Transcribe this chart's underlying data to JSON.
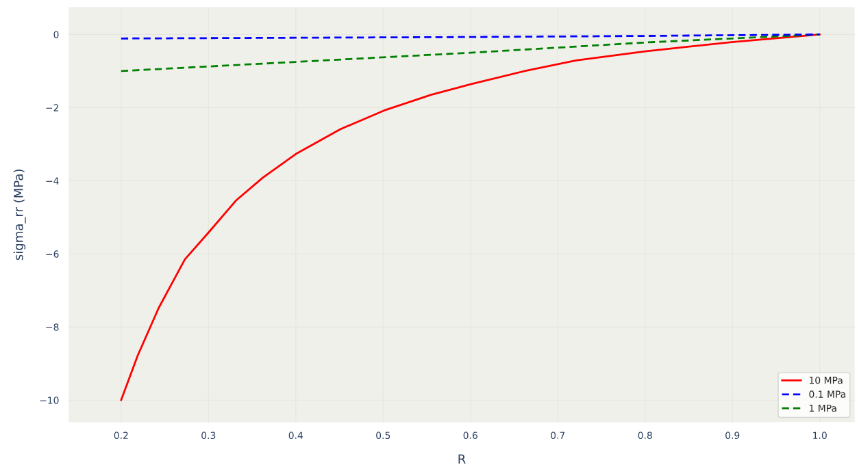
{
  "chart_data": {
    "type": "line",
    "xlabel": "R",
    "ylabel": "sigma_rr (MPa)",
    "xlim": [
      0.14,
      1.04
    ],
    "ylim": [
      -10.6,
      0.75
    ],
    "xticks": [
      {
        "value": 0.2,
        "label": "0.2"
      },
      {
        "value": 0.3,
        "label": "0.3"
      },
      {
        "value": 0.4,
        "label": "0.4"
      },
      {
        "value": 0.5,
        "label": "0.5"
      },
      {
        "value": 0.6,
        "label": "0.6"
      },
      {
        "value": 0.7,
        "label": "0.7"
      },
      {
        "value": 0.8,
        "label": "0.8"
      },
      {
        "value": 0.9,
        "label": "0.9"
      },
      {
        "value": 1.0,
        "label": "1.0"
      }
    ],
    "yticks": [
      {
        "value": -10,
        "label": "−10"
      },
      {
        "value": -8,
        "label": "−8"
      },
      {
        "value": -6,
        "label": "−6"
      },
      {
        "value": -4,
        "label": "−4"
      },
      {
        "value": -2,
        "label": "−2"
      },
      0
    ],
    "grid": true,
    "legend": "bottom right",
    "series": [
      {
        "name": "10 MPa",
        "color": "#ff0000",
        "line_style": "solid",
        "x": [
          0.2,
          0.219,
          0.243,
          0.273,
          0.301,
          0.332,
          0.362,
          0.4,
          0.451,
          0.501,
          0.555,
          0.602,
          0.662,
          0.721,
          0.8,
          0.899,
          1.0
        ],
        "values": [
          -10,
          -8.78,
          -7.48,
          -6.15,
          -5.39,
          -4.53,
          -3.92,
          -3.27,
          -2.59,
          -2.08,
          -1.65,
          -1.35,
          -1.0,
          -0.71,
          -0.46,
          -0.21,
          0
        ]
      },
      {
        "name": "0.1 MPa",
        "color": "#0000ff",
        "line_style": "dashed",
        "x": [
          0.2,
          0.4,
          0.6,
          0.8,
          1.0
        ],
        "values": [
          -0.11,
          -0.09,
          -0.07,
          -0.04,
          0
        ]
      },
      {
        "name": "1 MPa",
        "color": "#008000",
        "line_style": "dashed",
        "x": [
          0.2,
          0.4,
          0.6,
          0.8,
          0.9,
          1.0
        ],
        "values": [
          -1.0,
          -0.75,
          -0.5,
          -0.22,
          -0.11,
          0
        ]
      }
    ]
  }
}
